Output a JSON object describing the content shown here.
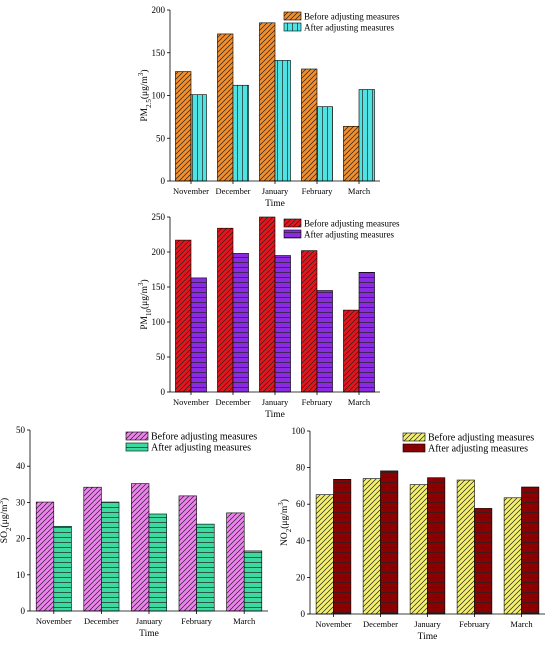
{
  "chart_data": [
    {
      "id": "pm25",
      "type": "bar",
      "ylabel": "PM₂.₅(μg/m³)",
      "xlabel": "Time",
      "categories": [
        "November",
        "December",
        "January",
        "February",
        "March"
      ],
      "ylim": [
        0,
        200
      ],
      "yticks": [
        0,
        50,
        100,
        150,
        200
      ],
      "legend_position": "top-right",
      "series": [
        {
          "name": "Before adjusting measures",
          "values": [
            128,
            172,
            185,
            131,
            64
          ],
          "color": "#f28e2b",
          "pattern": "diagonal"
        },
        {
          "name": "After adjusting measures",
          "values": [
            101,
            112,
            141,
            87,
            107
          ],
          "color": "#4fe3e3",
          "pattern": "vertical"
        }
      ]
    },
    {
      "id": "pm10",
      "type": "bar",
      "ylabel": "PM₁₀(μg/m³)",
      "xlabel": "Time",
      "categories": [
        "November",
        "December",
        "January",
        "February",
        "March"
      ],
      "ylim": [
        0,
        250
      ],
      "yticks": [
        0,
        50,
        100,
        150,
        200,
        250
      ],
      "legend_position": "top-right",
      "series": [
        {
          "name": "Before adjusting measures",
          "values": [
            217,
            234,
            250,
            202,
            117
          ],
          "color": "#e8141c",
          "pattern": "diagonal"
        },
        {
          "name": "After adjusting measures",
          "values": [
            163,
            198,
            195,
            145,
            171
          ],
          "color": "#8a2be2",
          "pattern": "horizontal"
        }
      ]
    },
    {
      "id": "so2",
      "type": "bar",
      "ylabel": "SO₂(μg/m³)",
      "xlabel": "Time",
      "categories": [
        "November",
        "December",
        "January",
        "February",
        "March"
      ],
      "ylim": [
        0,
        50
      ],
      "yticks": [
        0,
        10,
        20,
        30,
        40,
        50
      ],
      "legend_position": "top-right",
      "series": [
        {
          "name": "Before adjusting measures",
          "values": [
            30.1,
            34.2,
            35.2,
            31.8,
            27.1
          ],
          "color": "#ee82ee",
          "pattern": "diagonal"
        },
        {
          "name": "After adjusting measures",
          "values": [
            23.4,
            30.1,
            26.8,
            24.0,
            16.6
          ],
          "color": "#3cd9a0",
          "pattern": "horizontal"
        }
      ]
    },
    {
      "id": "no2",
      "type": "bar",
      "ylabel": "NO₂(μg/m³)",
      "xlabel": "Time",
      "categories": [
        "November",
        "December",
        "January",
        "February",
        "March"
      ],
      "ylim": [
        0,
        100
      ],
      "yticks": [
        0,
        20,
        40,
        60,
        80,
        100
      ],
      "legend_position": "top-right",
      "series": [
        {
          "name": "Before adjusting measures",
          "values": [
            65.2,
            74.0,
            70.7,
            73.2,
            63.5
          ],
          "color": "#f4f06e",
          "pattern": "diagonal"
        },
        {
          "name": "After adjusting measures",
          "values": [
            73.6,
            78.2,
            74.5,
            57.7,
            69.4
          ],
          "color": "#8b0000",
          "pattern": "horizontal"
        }
      ]
    }
  ]
}
